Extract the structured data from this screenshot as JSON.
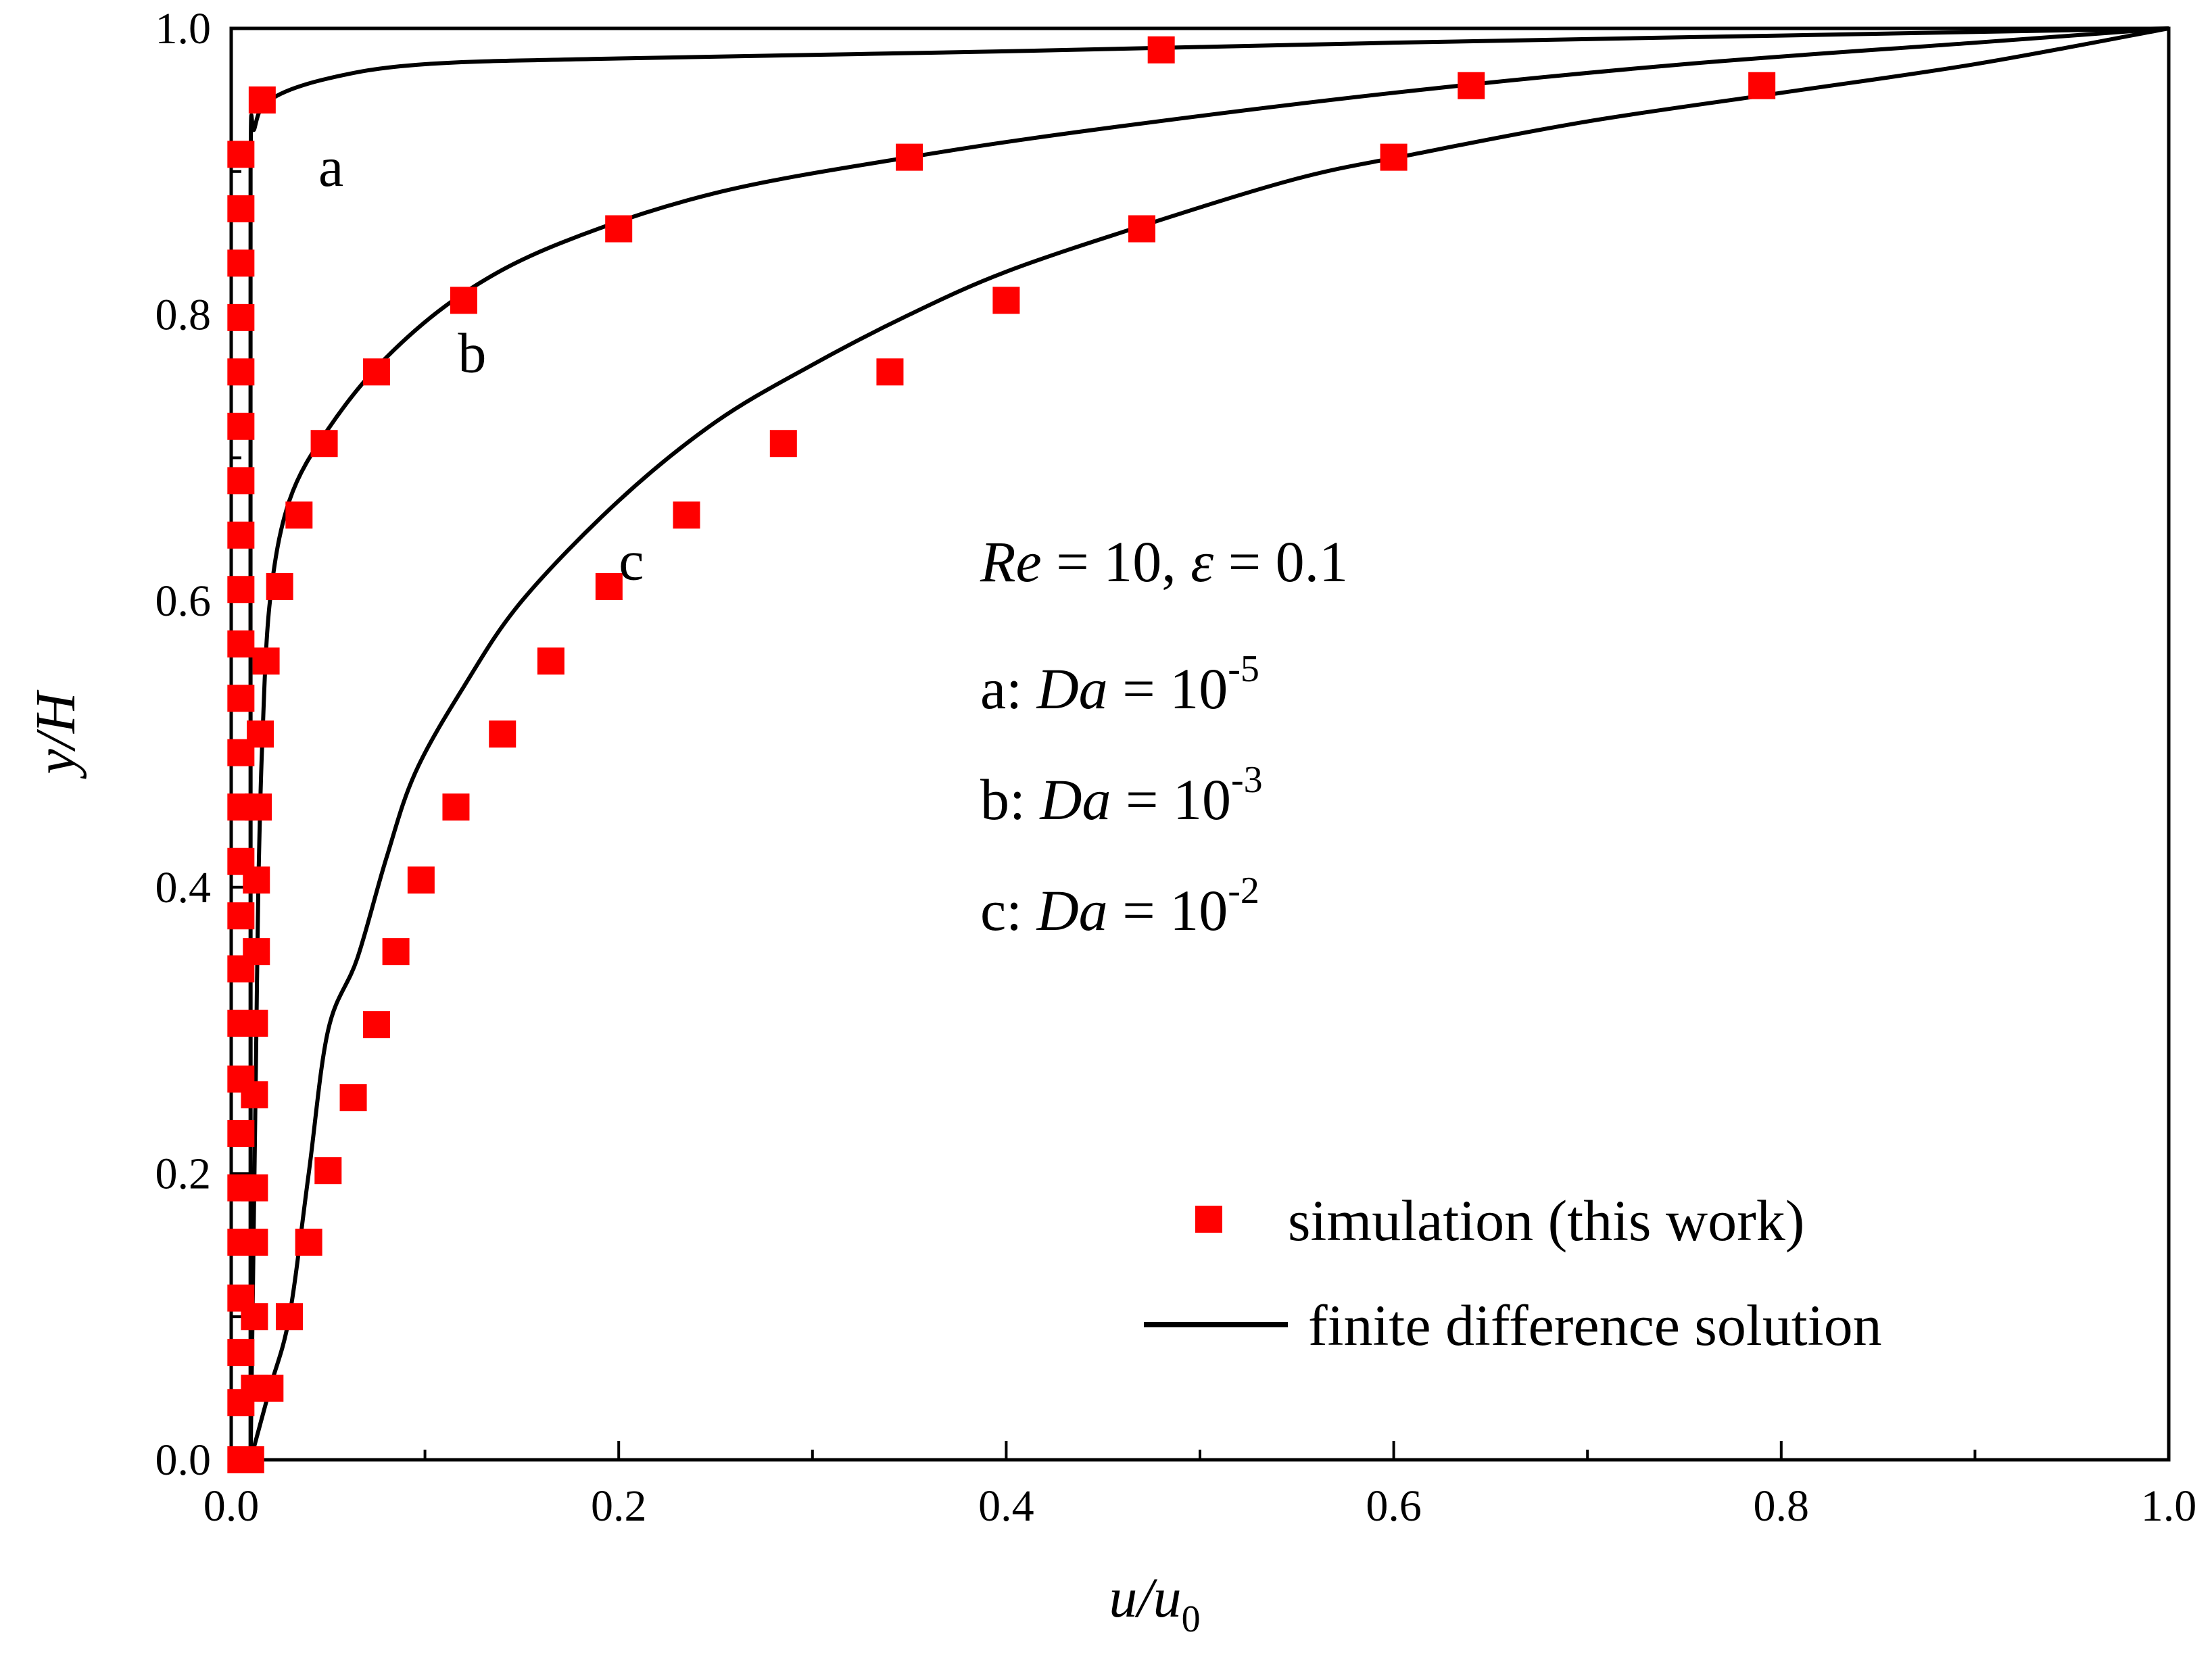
{
  "chart_data": {
    "type": "line",
    "xlabel": "u/u",
    "xlabel_sub": "0",
    "ylabel": "y/H",
    "xlim": [
      0.0,
      1.0
    ],
    "ylim": [
      0.0,
      1.0
    ],
    "x_ticks": [
      0.0,
      0.2,
      0.4,
      0.6,
      0.8,
      1.0
    ],
    "x_tick_labels": [
      "0.0",
      "0.2",
      "0.4",
      "0.6",
      "0.8",
      "1.0"
    ],
    "y_ticks": [
      0.0,
      0.2,
      0.4,
      0.6,
      0.8,
      1.0
    ],
    "y_tick_labels": [
      "0.0",
      "0.2",
      "0.4",
      "0.6",
      "0.8",
      "1.0"
    ],
    "annotation": {
      "line1": {
        "re": "Re",
        "eq1": " = 10, ",
        "eps": "ε",
        "eq2": " = 0.1"
      },
      "rows": [
        {
          "prefix": "a: ",
          "da": "Da",
          "eq": " = 10",
          "exp": "-5"
        },
        {
          "prefix": "b: ",
          "da": "Da",
          "eq": " = 10",
          "exp": "-3"
        },
        {
          "prefix": "c: ",
          "da": "Da",
          "eq": " = 10",
          "exp": "-2"
        }
      ]
    },
    "series": [
      {
        "name": "a",
        "label": "a",
        "label_pos": [
          0.045,
          0.89
        ],
        "line": [
          [
            0.01,
            0
          ],
          [
            0.01,
            0.5
          ],
          [
            0.01,
            0.9
          ],
          [
            0.012,
            0.93
          ],
          [
            0.02,
            0.95
          ],
          [
            0.05,
            0.965
          ],
          [
            0.1,
            0.975
          ],
          [
            0.2,
            0.979
          ],
          [
            0.4,
            0.984
          ],
          [
            0.6,
            0.99
          ],
          [
            0.8,
            0.995
          ],
          [
            1.0,
            1.0
          ]
        ],
        "points": [
          [
            0.005,
            0.0
          ],
          [
            0.005,
            0.04
          ],
          [
            0.005,
            0.075
          ],
          [
            0.005,
            0.113
          ],
          [
            0.005,
            0.152
          ],
          [
            0.005,
            0.19
          ],
          [
            0.005,
            0.228
          ],
          [
            0.005,
            0.266
          ],
          [
            0.005,
            0.305
          ],
          [
            0.005,
            0.343
          ],
          [
            0.005,
            0.38
          ],
          [
            0.005,
            0.418
          ],
          [
            0.005,
            0.456
          ],
          [
            0.005,
            0.494
          ],
          [
            0.005,
            0.532
          ],
          [
            0.005,
            0.57
          ],
          [
            0.005,
            0.608
          ],
          [
            0.005,
            0.646
          ],
          [
            0.005,
            0.684
          ],
          [
            0.005,
            0.722
          ],
          [
            0.005,
            0.76
          ],
          [
            0.005,
            0.798
          ],
          [
            0.005,
            0.836
          ],
          [
            0.005,
            0.874
          ],
          [
            0.005,
            0.912
          ],
          [
            0.016,
            0.95
          ],
          [
            0.48,
            0.985
          ]
        ]
      },
      {
        "name": "b",
        "label": "b",
        "label_pos": [
          0.117,
          0.76
        ],
        "line": [
          [
            0.01,
            0
          ],
          [
            0.011,
            0.1
          ],
          [
            0.012,
            0.2
          ],
          [
            0.013,
            0.3
          ],
          [
            0.014,
            0.4
          ],
          [
            0.016,
            0.5
          ],
          [
            0.02,
            0.6
          ],
          [
            0.03,
            0.67
          ],
          [
            0.05,
            0.72
          ],
          [
            0.08,
            0.77
          ],
          [
            0.12,
            0.815
          ],
          [
            0.17,
            0.85
          ],
          [
            0.25,
            0.885
          ],
          [
            0.35,
            0.91
          ],
          [
            0.45,
            0.93
          ],
          [
            0.6,
            0.955
          ],
          [
            0.75,
            0.975
          ],
          [
            0.9,
            0.99
          ],
          [
            1.0,
            1.0
          ]
        ],
        "points": [
          [
            0.01,
            0.0
          ],
          [
            0.012,
            0.05
          ],
          [
            0.012,
            0.1
          ],
          [
            0.012,
            0.152
          ],
          [
            0.012,
            0.19
          ],
          [
            0.012,
            0.255
          ],
          [
            0.012,
            0.305
          ],
          [
            0.013,
            0.355
          ],
          [
            0.013,
            0.405
          ],
          [
            0.014,
            0.456
          ],
          [
            0.015,
            0.507
          ],
          [
            0.018,
            0.558
          ],
          [
            0.025,
            0.61
          ],
          [
            0.035,
            0.66
          ],
          [
            0.048,
            0.71
          ],
          [
            0.075,
            0.76
          ],
          [
            0.12,
            0.81
          ],
          [
            0.2,
            0.86
          ],
          [
            0.35,
            0.91
          ],
          [
            0.64,
            0.96
          ]
        ]
      },
      {
        "name": "c",
        "label": "c",
        "label_pos": [
          0.2,
          0.615
        ],
        "line": [
          [
            0.01,
            0
          ],
          [
            0.02,
            0.05
          ],
          [
            0.03,
            0.1
          ],
          [
            0.04,
            0.2
          ],
          [
            0.05,
            0.3
          ],
          [
            0.065,
            0.35
          ],
          [
            0.08,
            0.42
          ],
          [
            0.095,
            0.48
          ],
          [
            0.12,
            0.54
          ],
          [
            0.15,
            0.6
          ],
          [
            0.2,
            0.67
          ],
          [
            0.25,
            0.725
          ],
          [
            0.3,
            0.765
          ],
          [
            0.35,
            0.8
          ],
          [
            0.4,
            0.83
          ],
          [
            0.47,
            0.862
          ],
          [
            0.55,
            0.895
          ],
          [
            0.61,
            0.912
          ],
          [
            0.7,
            0.935
          ],
          [
            0.8,
            0.955
          ],
          [
            0.9,
            0.975
          ],
          [
            1.0,
            1.0
          ]
        ],
        "points": [
          [
            0.01,
            0.0
          ],
          [
            0.02,
            0.05
          ],
          [
            0.03,
            0.1
          ],
          [
            0.04,
            0.152
          ],
          [
            0.05,
            0.202
          ],
          [
            0.063,
            0.253
          ],
          [
            0.075,
            0.304
          ],
          [
            0.085,
            0.355
          ],
          [
            0.098,
            0.405
          ],
          [
            0.116,
            0.456
          ],
          [
            0.14,
            0.507
          ],
          [
            0.165,
            0.558
          ],
          [
            0.195,
            0.61
          ],
          [
            0.235,
            0.66
          ],
          [
            0.285,
            0.71
          ],
          [
            0.34,
            0.76
          ],
          [
            0.4,
            0.81
          ],
          [
            0.47,
            0.86
          ],
          [
            0.6,
            0.91
          ],
          [
            0.79,
            0.96
          ]
        ]
      }
    ],
    "legend": {
      "position": "bottom-right",
      "entries": [
        {
          "marker": "square",
          "label": "simulation (this work)"
        },
        {
          "marker": "line",
          "label": "finite difference solution"
        }
      ]
    },
    "colors": {
      "marker": "#ff0000",
      "line": "#000000",
      "axis": "#000000"
    }
  }
}
